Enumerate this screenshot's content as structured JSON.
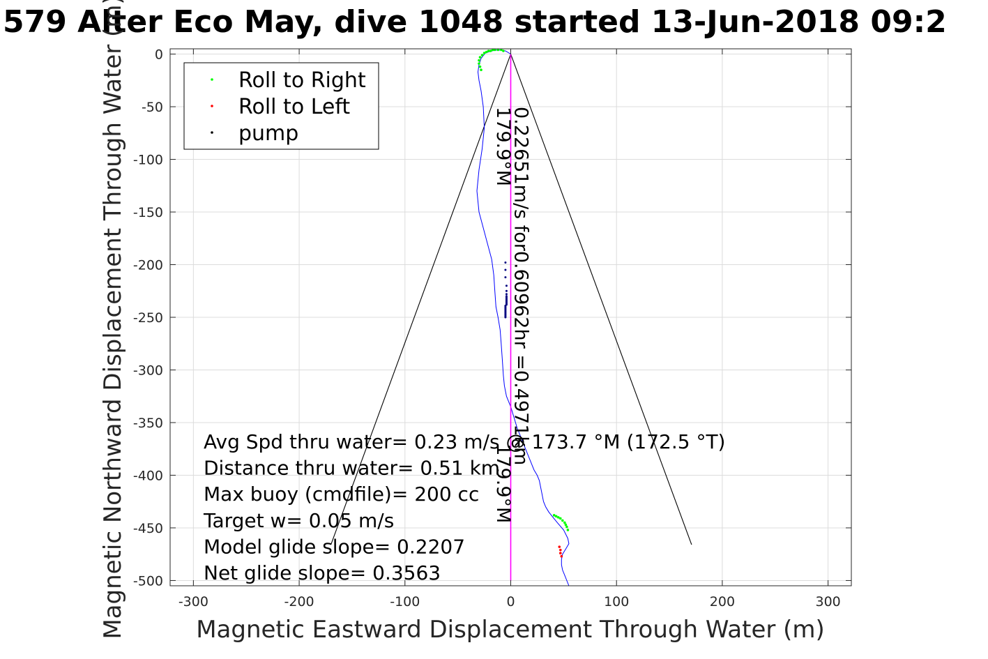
{
  "chart_data": {
    "type": "line",
    "title": "579 Alter Eco May, dive 1048 started 13-Jun-2018 09:2",
    "xlabel": "Magnetic Eastward Displacement Through Water (m)",
    "ylabel": "Magnetic Northward Displacement Through Water (m)",
    "xlim": [
      -322,
      322
    ],
    "ylim": [
      -505,
      5
    ],
    "xticks": [
      -300,
      -200,
      -100,
      0,
      100,
      200,
      300
    ],
    "yticks": [
      0,
      -50,
      -100,
      -150,
      -200,
      -250,
      -300,
      -350,
      -400,
      -450,
      -500
    ],
    "xtick_labels": [
      "-300",
      "-200",
      "-100",
      "0",
      "100",
      "200",
      "300"
    ],
    "ytick_labels": [
      "0",
      "-50",
      "-100",
      "-150",
      "-200",
      "-250",
      "-300",
      "-350",
      "-400",
      "-450",
      "-500"
    ],
    "grid": true,
    "legend_position": "top-left",
    "legend": [
      {
        "label": "Roll to Right",
        "color": "#00ff00"
      },
      {
        "label": "Roll to Left",
        "color": "#ff0000"
      },
      {
        "label": "pump",
        "color": "#000000"
      }
    ],
    "series": [
      {
        "name": "track",
        "color": "#0000ff",
        "x": [
          0,
          -5,
          -12,
          -18,
          -24,
          -28,
          -30,
          -31,
          -30,
          -28,
          -26,
          -25,
          -27,
          -30,
          -32,
          -30,
          -26,
          -22,
          -18,
          -16,
          -15,
          -14,
          -12,
          -10,
          -9,
          -8,
          -7,
          -6,
          -4,
          0,
          3,
          6,
          10,
          14,
          18,
          22,
          25,
          27,
          28,
          29,
          30,
          31,
          33,
          36,
          40,
          44,
          50,
          54,
          55,
          52,
          49,
          48,
          48,
          49,
          51,
          53,
          55
        ],
        "y": [
          0,
          3,
          4,
          3,
          1,
          -4,
          -10,
          -17,
          -25,
          -35,
          -50,
          -70,
          -90,
          -110,
          -130,
          -150,
          -165,
          -180,
          -195,
          -210,
          -225,
          -240,
          -250,
          -262,
          -275,
          -290,
          -305,
          -315,
          -325,
          -335,
          -345,
          -355,
          -365,
          -375,
          -385,
          -395,
          -400,
          -405,
          -410,
          -415,
          -420,
          -425,
          -430,
          -435,
          -440,
          -445,
          -452,
          -460,
          -465,
          -470,
          -475,
          -480,
          -485,
          -490,
          -495,
          -500,
          -505
        ]
      },
      {
        "name": "heading",
        "color": "#ff00ff",
        "x": [
          0,
          0
        ],
        "y": [
          0,
          -500
        ]
      }
    ],
    "roll_right": {
      "x": [
        -28,
        -29,
        -30,
        -30,
        -29,
        -27,
        -25,
        -23,
        -21,
        -19,
        -17,
        -15,
        -12,
        -9,
        -7,
        41,
        43,
        45,
        47,
        49,
        51,
        52,
        53,
        54
      ],
      "y": [
        -15,
        -12,
        -9,
        -6,
        -3,
        -1,
        1,
        2,
        3,
        3,
        4,
        4,
        4,
        4,
        3,
        -438,
        -439,
        -440,
        -441,
        -443,
        -445,
        -447,
        -449,
        -452
      ]
    },
    "roll_left": {
      "x": [
        46,
        47,
        47,
        48
      ],
      "y": [
        -468,
        -471,
        -474,
        -477
      ]
    },
    "pump": {
      "x": [
        -5,
        -5,
        -5,
        -4,
        -4,
        -4,
        -4,
        -4,
        -4,
        -4,
        -4,
        -4,
        -4,
        -4,
        -4,
        -5,
        -5,
        -5,
        -5,
        -5,
        -5,
        -5,
        -5,
        -5,
        -5,
        -5,
        -5
      ],
      "y": [
        -198,
        -205,
        -212,
        -220,
        -225,
        -228,
        -230,
        -231,
        -232,
        -233,
        -234,
        -235,
        -236,
        -237,
        -238,
        -239,
        -240,
        -241,
        -242,
        -243,
        -244,
        -245,
        -246,
        -247,
        -248,
        -249,
        -250
      ]
    },
    "cone_lines": [
      {
        "x": [
          0,
          -170
        ],
        "y": [
          0,
          -466
        ]
      },
      {
        "x": [
          0,
          171
        ],
        "y": [
          0,
          -466
        ]
      }
    ],
    "annotations_rotated": [
      {
        "text": "0.22651m/s for0.60962hr =0.4971km",
        "x": 4,
        "y": -50,
        "angle": 90
      },
      {
        "text": "179.9°M",
        "x": -13,
        "y": -50,
        "angle": 90
      },
      {
        "text": "179.9°M",
        "x": -13,
        "y": -370,
        "angle": 90
      }
    ],
    "annotations": [
      "Avg Spd thru water=  0.23 m/s @ 173.7 °M (172.5 °T)",
      "Distance thru water=  0.51 km",
      "Max buoy (cmdfile)= 200 cc",
      "Target w= 0.05 m/s",
      "Model glide slope= 0.2207",
      "Net glide slope= 0.3563"
    ]
  }
}
